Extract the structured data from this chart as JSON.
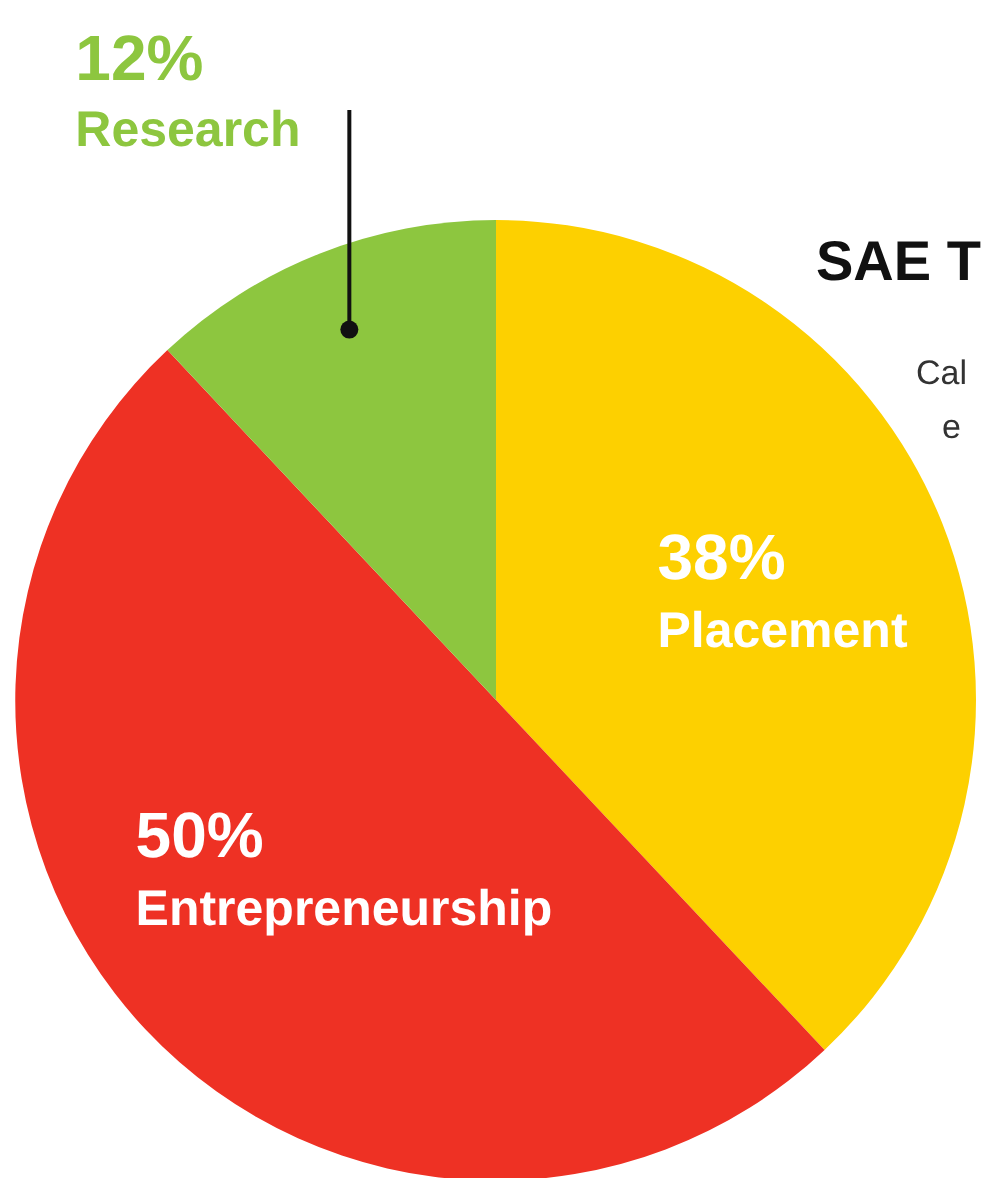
{
  "chart_data": {
    "type": "pie",
    "title": "SAE T",
    "annotations": [
      "Cal",
      "e"
    ],
    "categories": [
      "Placement",
      "Entrepreneurship",
      "Research"
    ],
    "values": [
      38,
      50,
      12
    ],
    "colors": [
      "#fdd000",
      "#ee3124",
      "#8dc63f"
    ],
    "value_labels": [
      "38%",
      "50%",
      "12%"
    ]
  }
}
